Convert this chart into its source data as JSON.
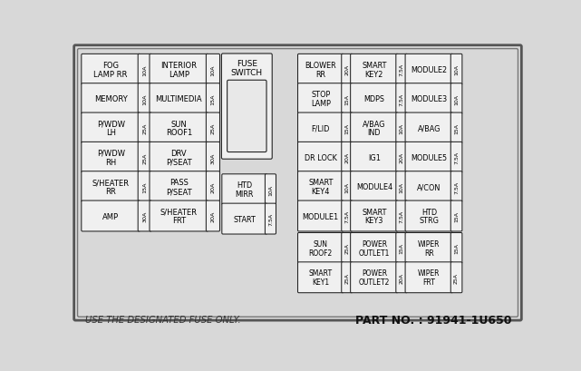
{
  "bg_color": "#d8d8d8",
  "box_fill": "#f0f0f0",
  "box_edge": "#222222",
  "footer_left": "USE THE DESIGNATED FUSE ONLY.",
  "footer_right": "PART NO. : 91941-1U650",
  "left_fuses": [
    [
      [
        "FOG\nLAMP RR",
        "10A"
      ],
      [
        "INTERIOR\nLAMP",
        "10A"
      ]
    ],
    [
      [
        "MEMORY",
        "10A"
      ],
      [
        "MULTIMEDIA",
        "15A"
      ]
    ],
    [
      [
        "P/WDW\nLH",
        "25A"
      ],
      [
        "SUN\nROOF1",
        "25A"
      ]
    ],
    [
      [
        "P/WDW\nRH",
        "25A"
      ],
      [
        "DRV\nP/SEAT",
        "30A"
      ]
    ],
    [
      [
        "S/HEATER\nRR",
        "15A"
      ],
      [
        "PASS\nP/SEAT",
        "20A"
      ]
    ],
    [
      [
        "AMP",
        "30A"
      ],
      [
        "S/HEATER\nFRT",
        "20A"
      ]
    ]
  ],
  "right_fuses": [
    [
      [
        "BLOWER\nRR",
        "20A"
      ],
      [
        "SMART\nKEY2",
        "7.5A"
      ],
      [
        "MODULE2",
        "10A"
      ]
    ],
    [
      [
        "STOP\nLAMP",
        "15A"
      ],
      [
        "MDPS",
        "7.5A"
      ],
      [
        "MODULE3",
        "10A"
      ]
    ],
    [
      [
        "F/LID",
        "15A"
      ],
      [
        "A/BAG\nIND",
        "10A"
      ],
      [
        "A/BAG",
        "15A"
      ]
    ],
    [
      [
        "DR LOCK",
        "20A"
      ],
      [
        "IG1",
        "20A"
      ],
      [
        "MODULE5",
        "7.5A"
      ]
    ],
    [
      [
        "SMART\nKEY4",
        "10A"
      ],
      [
        "MODULE4",
        "10A"
      ],
      [
        "A/CON",
        "7.5A"
      ]
    ],
    [
      [
        "MODULE1",
        "7.5A"
      ],
      [
        "SMART\nKEY3",
        "7.5A"
      ],
      [
        "HTD\nSTRG",
        "15A"
      ]
    ]
  ],
  "bottom_left_fuses": [
    [
      [
        "HTD\nMIRR",
        "10A"
      ]
    ],
    [
      [
        "START",
        "7.5A"
      ]
    ]
  ],
  "bottom_right_fuses": [
    [
      [
        "SUN\nROOF2",
        "25A"
      ],
      [
        "POWER\nOUTLET1",
        "15A"
      ],
      [
        "WIPER\nRR",
        "15A"
      ]
    ],
    [
      [
        "SMART\nKEY1",
        "25A"
      ],
      [
        "POWER\nOUTLET2",
        "20A"
      ],
      [
        "WIPER\nFRT",
        "25A"
      ]
    ]
  ]
}
